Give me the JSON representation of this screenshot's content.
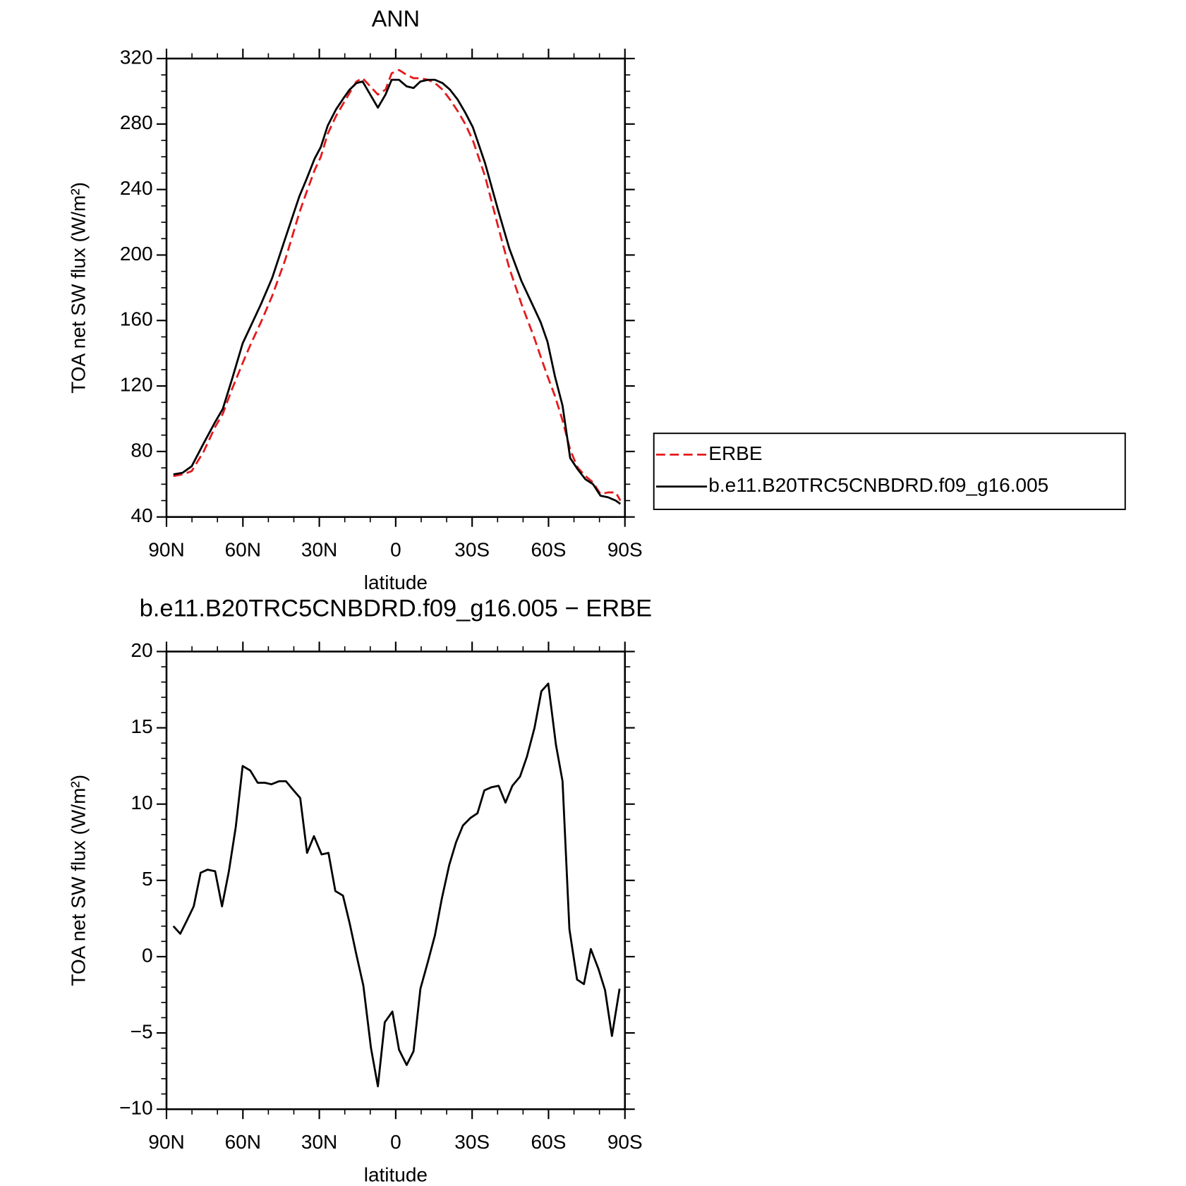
{
  "chart_data": [
    {
      "type": "line",
      "title": "ANN",
      "xlabel": "latitude",
      "ylabel": "TOA net SW flux (W/m²)",
      "x": [
        87.3,
        83.7,
        80.1,
        75.4,
        70.9,
        67.9,
        64.3,
        60.1,
        56.8,
        52.9,
        48.5,
        43.4,
        37.8,
        35.1,
        31.8,
        29.4,
        26.7,
        23.4,
        20.4,
        18.1,
        15.4,
        13.0,
        10.0,
        7.0,
        4.0,
        1.6,
        -1.3,
        -4.3,
        -7.0,
        -9.7,
        -12.7,
        -15.4,
        -18.4,
        -21.3,
        -24.3,
        -27.3,
        -30.3,
        -35.1,
        -40.1,
        -44.6,
        -49.4,
        -54.5,
        -56.9,
        -59.6,
        -62.5,
        -65.5,
        -68.5,
        -71.5,
        -74.5,
        -77.5,
        -80.4,
        -83.4,
        -86.4,
        -88.2
      ],
      "series": [
        {
          "name": "ERBE",
          "color": "#e41a1c",
          "style": "dashed",
          "values": [
            65,
            66,
            68,
            80,
            95,
            103,
            118,
            134,
            146,
            159,
            175,
            197,
            226,
            238,
            252,
            260,
            274,
            285,
            293,
            299,
            306,
            308,
            303,
            298,
            301,
            311,
            313,
            310,
            308,
            308,
            307,
            305,
            301,
            295,
            288,
            280,
            270,
            248,
            218,
            192,
            170,
            149,
            138,
            126,
            114,
            99,
            81,
            70,
            65,
            61,
            54,
            55,
            55,
            50
          ]
        },
        {
          "name": "b.e11.B20TRC5CNBDRD.f09_g16.005",
          "color": "#000000",
          "style": "solid",
          "values": [
            66,
            67,
            71,
            85,
            98,
            106,
            124,
            146,
            157,
            170,
            186,
            210,
            236,
            246,
            259,
            266,
            279,
            289,
            296,
            301,
            305,
            306,
            298,
            290,
            298,
            307,
            307,
            303,
            302,
            306,
            307,
            307,
            305,
            301,
            295,
            287,
            278,
            256,
            228,
            204,
            184,
            167,
            159,
            147,
            126,
            108,
            76,
            69,
            63,
            60,
            53,
            52,
            50,
            48
          ]
        }
      ],
      "xlim": [
        90,
        -90
      ],
      "xticks": [
        {
          "value": 90,
          "label": "90N"
        },
        {
          "value": 60,
          "label": "60N"
        },
        {
          "value": 30,
          "label": "30N"
        },
        0,
        {
          "value": -30,
          "label": "30S"
        },
        {
          "value": -60,
          "label": "60S"
        },
        {
          "value": -90,
          "label": "90S"
        }
      ],
      "ylim": [
        40,
        320
      ],
      "yticks": [
        40,
        80,
        120,
        160,
        200,
        240,
        280,
        320
      ],
      "legend": "right"
    },
    {
      "type": "line",
      "title": "b.e11.B20TRC5CNBDRD.f09_g16.005 − ERBE",
      "xlabel": "latitude",
      "ylabel": "TOA net SW flux (W/m²)",
      "x": [
        87.3,
        84.6,
        82.2,
        79.3,
        76.6,
        73.9,
        70.9,
        68.2,
        65.5,
        62.8,
        60.1,
        57.1,
        54.2,
        51.5,
        48.8,
        45.8,
        43.1,
        40.1,
        37.5,
        34.8,
        32.1,
        29.1,
        26.4,
        23.7,
        20.7,
        18.1,
        15.4,
        12.7,
        9.7,
        7.0,
        4.3,
        1.3,
        -1.3,
        -4.3,
        -7.0,
        -9.7,
        -12.7,
        -15.4,
        -18.1,
        -21.0,
        -23.7,
        -26.4,
        -29.4,
        -32.1,
        -34.8,
        -37.5,
        -40.4,
        -43.1,
        -45.8,
        -48.8,
        -51.5,
        -54.5,
        -57.2,
        -59.9,
        -62.9,
        -65.5,
        -68.2,
        -71.2,
        -73.9,
        -76.6,
        -79.6,
        -82.2,
        -84.9,
        -87.9
      ],
      "series": [
        {
          "color": "#000000",
          "style": "solid",
          "values": [
            2.0,
            1.5,
            2.3,
            3.3,
            5.5,
            5.7,
            5.6,
            3.3,
            5.6,
            8.5,
            12.5,
            12.2,
            11.4,
            11.4,
            11.3,
            11.5,
            11.5,
            10.9,
            10.4,
            6.8,
            7.9,
            6.7,
            6.8,
            4.3,
            4.0,
            2.2,
            0.1,
            -1.9,
            -6.0,
            -8.5,
            -4.3,
            -3.6,
            -6.1,
            -7.1,
            -6.2,
            -2.1,
            -0.3,
            1.4,
            3.8,
            6.0,
            7.5,
            8.6,
            9.1,
            9.4,
            10.9,
            11.1,
            11.2,
            10.1,
            11.2,
            11.8,
            13.1,
            15.0,
            17.4,
            17.9,
            13.9,
            11.5,
            1.8,
            -1.5,
            -1.8,
            0.5,
            -0.8,
            -2.2,
            -5.2,
            -2.1
          ]
        }
      ],
      "xlim": [
        90,
        -90
      ],
      "xticks": [
        {
          "value": 90,
          "label": "90N"
        },
        {
          "value": 60,
          "label": "60N"
        },
        {
          "value": 30,
          "label": "30N"
        },
        0,
        {
          "value": -30,
          "label": "30S"
        },
        {
          "value": -60,
          "label": "60S"
        },
        {
          "value": -90,
          "label": "90S"
        }
      ],
      "ylim": [
        -10,
        20
      ],
      "yticks": [
        {
          "value": -10,
          "label": "−10"
        },
        {
          "value": -5,
          "label": "−5"
        },
        0,
        5,
        10,
        15,
        20
      ]
    }
  ]
}
